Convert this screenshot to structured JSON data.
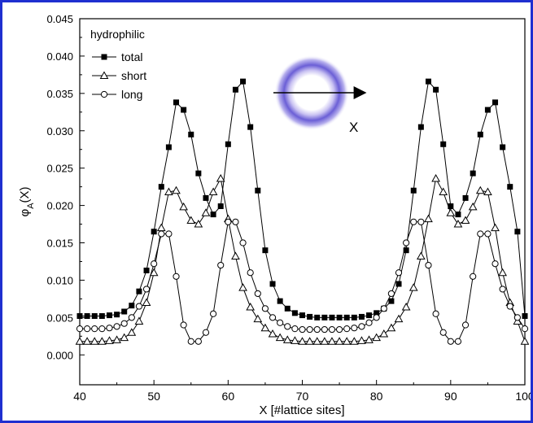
{
  "colors": {
    "frame": "#1f2fd0",
    "ring": "#6b5fd6"
  },
  "chart_data": {
    "type": "line",
    "xlabel": "X [#lattice sites]",
    "ylabel": "φA(X)",
    "xlim": [
      40,
      100
    ],
    "ylim": [
      -0.004,
      0.045
    ],
    "xticks": [
      40,
      50,
      60,
      70,
      80,
      90,
      100
    ],
    "yticks": [
      0.0,
      0.005,
      0.01,
      0.015,
      0.02,
      0.025,
      0.03,
      0.035,
      0.04,
      0.045
    ],
    "ytick_labels": [
      "0.000",
      "0.005",
      "0.010",
      "0.015",
      "0.020",
      "0.025",
      "0.030",
      "0.035",
      "0.040",
      "0.045"
    ],
    "legend_title": "hydrophilic",
    "legend_position": "top-left",
    "inset_label": "X",
    "grid": false,
    "x": [
      40,
      41,
      42,
      43,
      44,
      45,
      46,
      47,
      48,
      49,
      50,
      51,
      52,
      53,
      54,
      55,
      56,
      57,
      58,
      59,
      60,
      61,
      62,
      63,
      64,
      65,
      66,
      67,
      68,
      69,
      70,
      71,
      72,
      73,
      74,
      75,
      76,
      77,
      78,
      79,
      80,
      81,
      82,
      83,
      84,
      85,
      86,
      87,
      88,
      89,
      90,
      91,
      92,
      93,
      94,
      95,
      96,
      97,
      98,
      99,
      100
    ],
    "series": [
      {
        "name": "total",
        "marker": "square",
        "values": [
          0.0052,
          0.0052,
          0.0052,
          0.0052,
          0.0053,
          0.0054,
          0.0058,
          0.0066,
          0.0085,
          0.0113,
          0.0165,
          0.0225,
          0.0278,
          0.0338,
          0.0328,
          0.0295,
          0.0243,
          0.021,
          0.0188,
          0.0199,
          0.0282,
          0.0355,
          0.0366,
          0.0305,
          0.022,
          0.014,
          0.0095,
          0.0072,
          0.0062,
          0.0056,
          0.0053,
          0.0051,
          0.005,
          0.005,
          0.005,
          0.005,
          0.005,
          0.005,
          0.0051,
          0.0053,
          0.0056,
          0.0062,
          0.0072,
          0.0095,
          0.014,
          0.022,
          0.0305,
          0.0366,
          0.0355,
          0.0282,
          0.0199,
          0.0188,
          0.021,
          0.0243,
          0.0295,
          0.0328,
          0.0338,
          0.0278,
          0.0225,
          0.0165,
          0.0052
        ]
      },
      {
        "name": "short",
        "marker": "triangle",
        "values": [
          0.0018,
          0.0018,
          0.0018,
          0.0018,
          0.0019,
          0.002,
          0.0023,
          0.003,
          0.0045,
          0.007,
          0.011,
          0.017,
          0.0218,
          0.022,
          0.0198,
          0.018,
          0.0175,
          0.019,
          0.0218,
          0.0236,
          0.0182,
          0.0132,
          0.009,
          0.0064,
          0.0048,
          0.0036,
          0.0028,
          0.0023,
          0.002,
          0.0019,
          0.0018,
          0.0018,
          0.0018,
          0.0018,
          0.0018,
          0.0018,
          0.0018,
          0.0018,
          0.0019,
          0.002,
          0.0023,
          0.0028,
          0.0036,
          0.0048,
          0.0064,
          0.009,
          0.0132,
          0.0182,
          0.0236,
          0.0218,
          0.019,
          0.0175,
          0.018,
          0.0198,
          0.022,
          0.0218,
          0.017,
          0.011,
          0.007,
          0.0045,
          0.0018
        ]
      },
      {
        "name": "long",
        "marker": "circle",
        "values": [
          0.0035,
          0.0035,
          0.0035,
          0.0035,
          0.0036,
          0.0038,
          0.0042,
          0.005,
          0.0065,
          0.0088,
          0.0122,
          0.0162,
          0.0162,
          0.0105,
          0.004,
          0.0018,
          0.0018,
          0.003,
          0.0055,
          0.012,
          0.0178,
          0.0178,
          0.015,
          0.011,
          0.0082,
          0.0062,
          0.005,
          0.0043,
          0.0038,
          0.0035,
          0.0034,
          0.0034,
          0.0034,
          0.0034,
          0.0034,
          0.0034,
          0.0035,
          0.0036,
          0.0038,
          0.0043,
          0.005,
          0.0062,
          0.0082,
          0.011,
          0.015,
          0.0178,
          0.0178,
          0.012,
          0.0055,
          0.003,
          0.0018,
          0.0018,
          0.004,
          0.0105,
          0.0162,
          0.0162,
          0.0122,
          0.0088,
          0.0065,
          0.005,
          0.0035
        ]
      }
    ]
  }
}
